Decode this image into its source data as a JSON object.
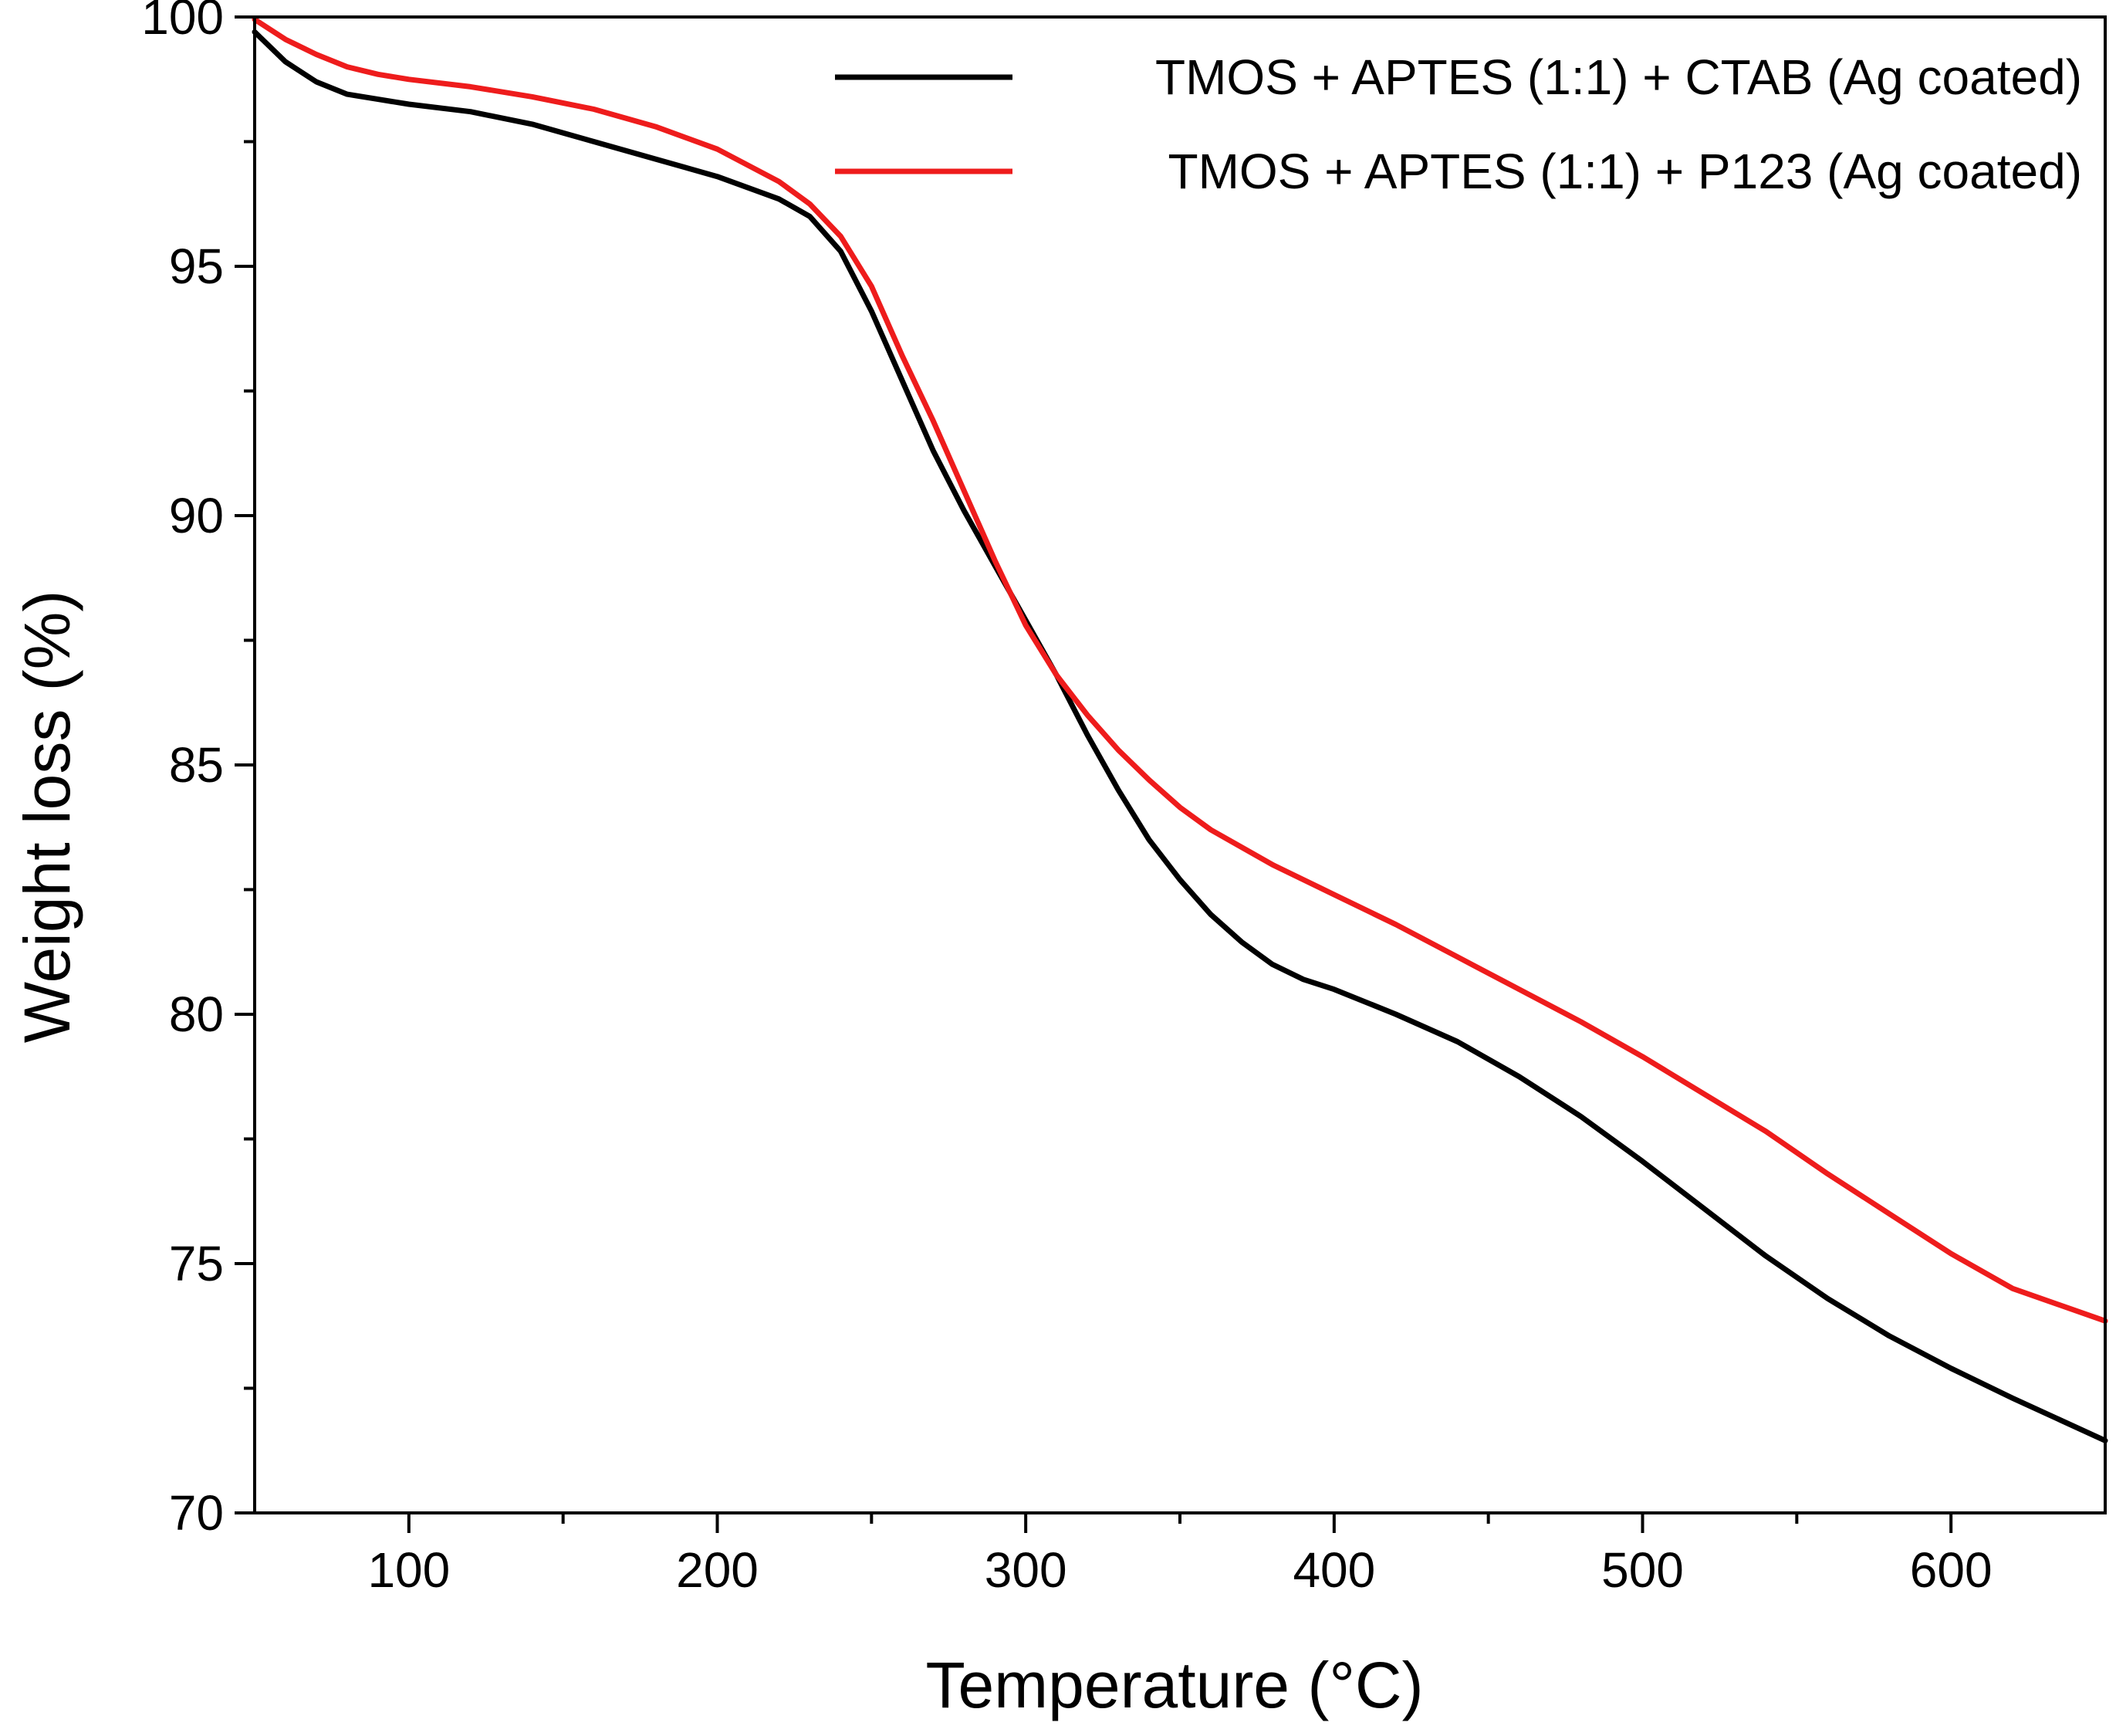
{
  "chart_data": {
    "type": "line",
    "title": "",
    "xlabel": "Temperature (°C)",
    "ylabel": "Weight loss (%)",
    "xlim": [
      50,
      650
    ],
    "ylim": [
      70,
      100
    ],
    "x_major_ticks": [
      100,
      200,
      300,
      400,
      500,
      600
    ],
    "x_minor_ticks": [
      150,
      250,
      350,
      450,
      550
    ],
    "y_major_ticks": [
      70,
      75,
      80,
      85,
      90,
      95,
      100
    ],
    "y_minor_ticks": [
      72.5,
      77.5,
      82.5,
      87.5,
      92.5,
      97.5
    ],
    "grid": false,
    "legend_position": "top-right",
    "series": [
      {
        "name": "TMOS + APTES (1:1) + CTAB (Ag coated)",
        "color": "#000000",
        "x": [
          50,
          60,
          70,
          80,
          90,
          100,
          120,
          140,
          160,
          180,
          200,
          220,
          230,
          240,
          250,
          260,
          270,
          280,
          290,
          300,
          310,
          320,
          330,
          340,
          350,
          360,
          370,
          380,
          390,
          400,
          420,
          440,
          460,
          480,
          500,
          520,
          540,
          560,
          580,
          600,
          620,
          650
        ],
        "y": [
          99.7,
          99.1,
          98.7,
          98.45,
          98.35,
          98.25,
          98.1,
          97.85,
          97.5,
          97.15,
          96.8,
          96.35,
          96.0,
          95.3,
          94.1,
          92.7,
          91.3,
          90.1,
          89.0,
          87.9,
          86.8,
          85.6,
          84.5,
          83.5,
          82.7,
          82.0,
          81.45,
          81.0,
          80.7,
          80.5,
          80.0,
          79.45,
          78.75,
          77.95,
          77.05,
          76.1,
          75.15,
          74.3,
          73.55,
          72.9,
          72.3,
          71.45
        ]
      },
      {
        "name": "TMOS + APTES (1:1) + P123  (Ag coated)",
        "color": "#ee1c1c",
        "x": [
          50,
          60,
          70,
          80,
          90,
          100,
          120,
          140,
          160,
          180,
          200,
          220,
          230,
          240,
          250,
          260,
          270,
          280,
          290,
          300,
          310,
          320,
          330,
          340,
          350,
          360,
          370,
          380,
          390,
          400,
          420,
          440,
          460,
          480,
          500,
          520,
          540,
          560,
          580,
          600,
          620,
          650
        ],
        "y": [
          99.95,
          99.55,
          99.25,
          99.0,
          98.85,
          98.75,
          98.6,
          98.4,
          98.15,
          97.8,
          97.35,
          96.7,
          96.25,
          95.6,
          94.6,
          93.2,
          91.9,
          90.5,
          89.1,
          87.8,
          86.8,
          86.0,
          85.3,
          84.7,
          84.15,
          83.7,
          83.35,
          83.0,
          82.7,
          82.4,
          81.8,
          81.15,
          80.5,
          79.85,
          79.15,
          78.4,
          77.65,
          76.8,
          76.0,
          75.2,
          74.5,
          73.85
        ]
      }
    ]
  }
}
